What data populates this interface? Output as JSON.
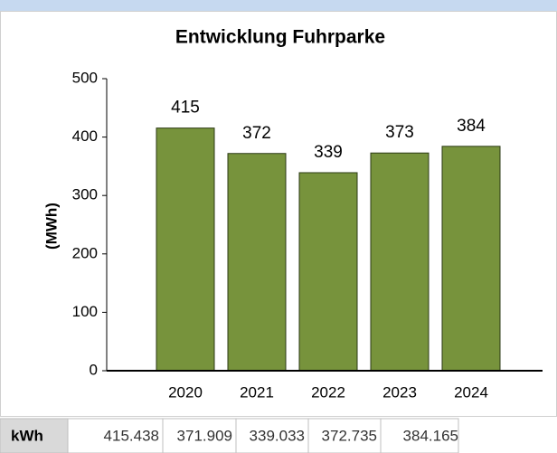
{
  "chart_data": {
    "type": "bar",
    "title": "Entwicklung Fuhrparke",
    "y_label": "(MWh)",
    "categories": [
      "2020",
      "2021",
      "2022",
      "2023",
      "2024"
    ],
    "values": [
      415.438,
      371.909,
      339.033,
      372.735,
      384.165
    ],
    "value_labels": [
      "415",
      "372",
      "339",
      "373",
      "384"
    ],
    "color": "#77933c",
    "ylim": [
      0,
      500
    ],
    "yticks": [
      0,
      100,
      200,
      300,
      400,
      500
    ],
    "grid": false
  },
  "table": {
    "row_label": "kWh",
    "cells": [
      "415.438",
      "371.909",
      "339.033",
      "372.735",
      "384.165"
    ]
  }
}
